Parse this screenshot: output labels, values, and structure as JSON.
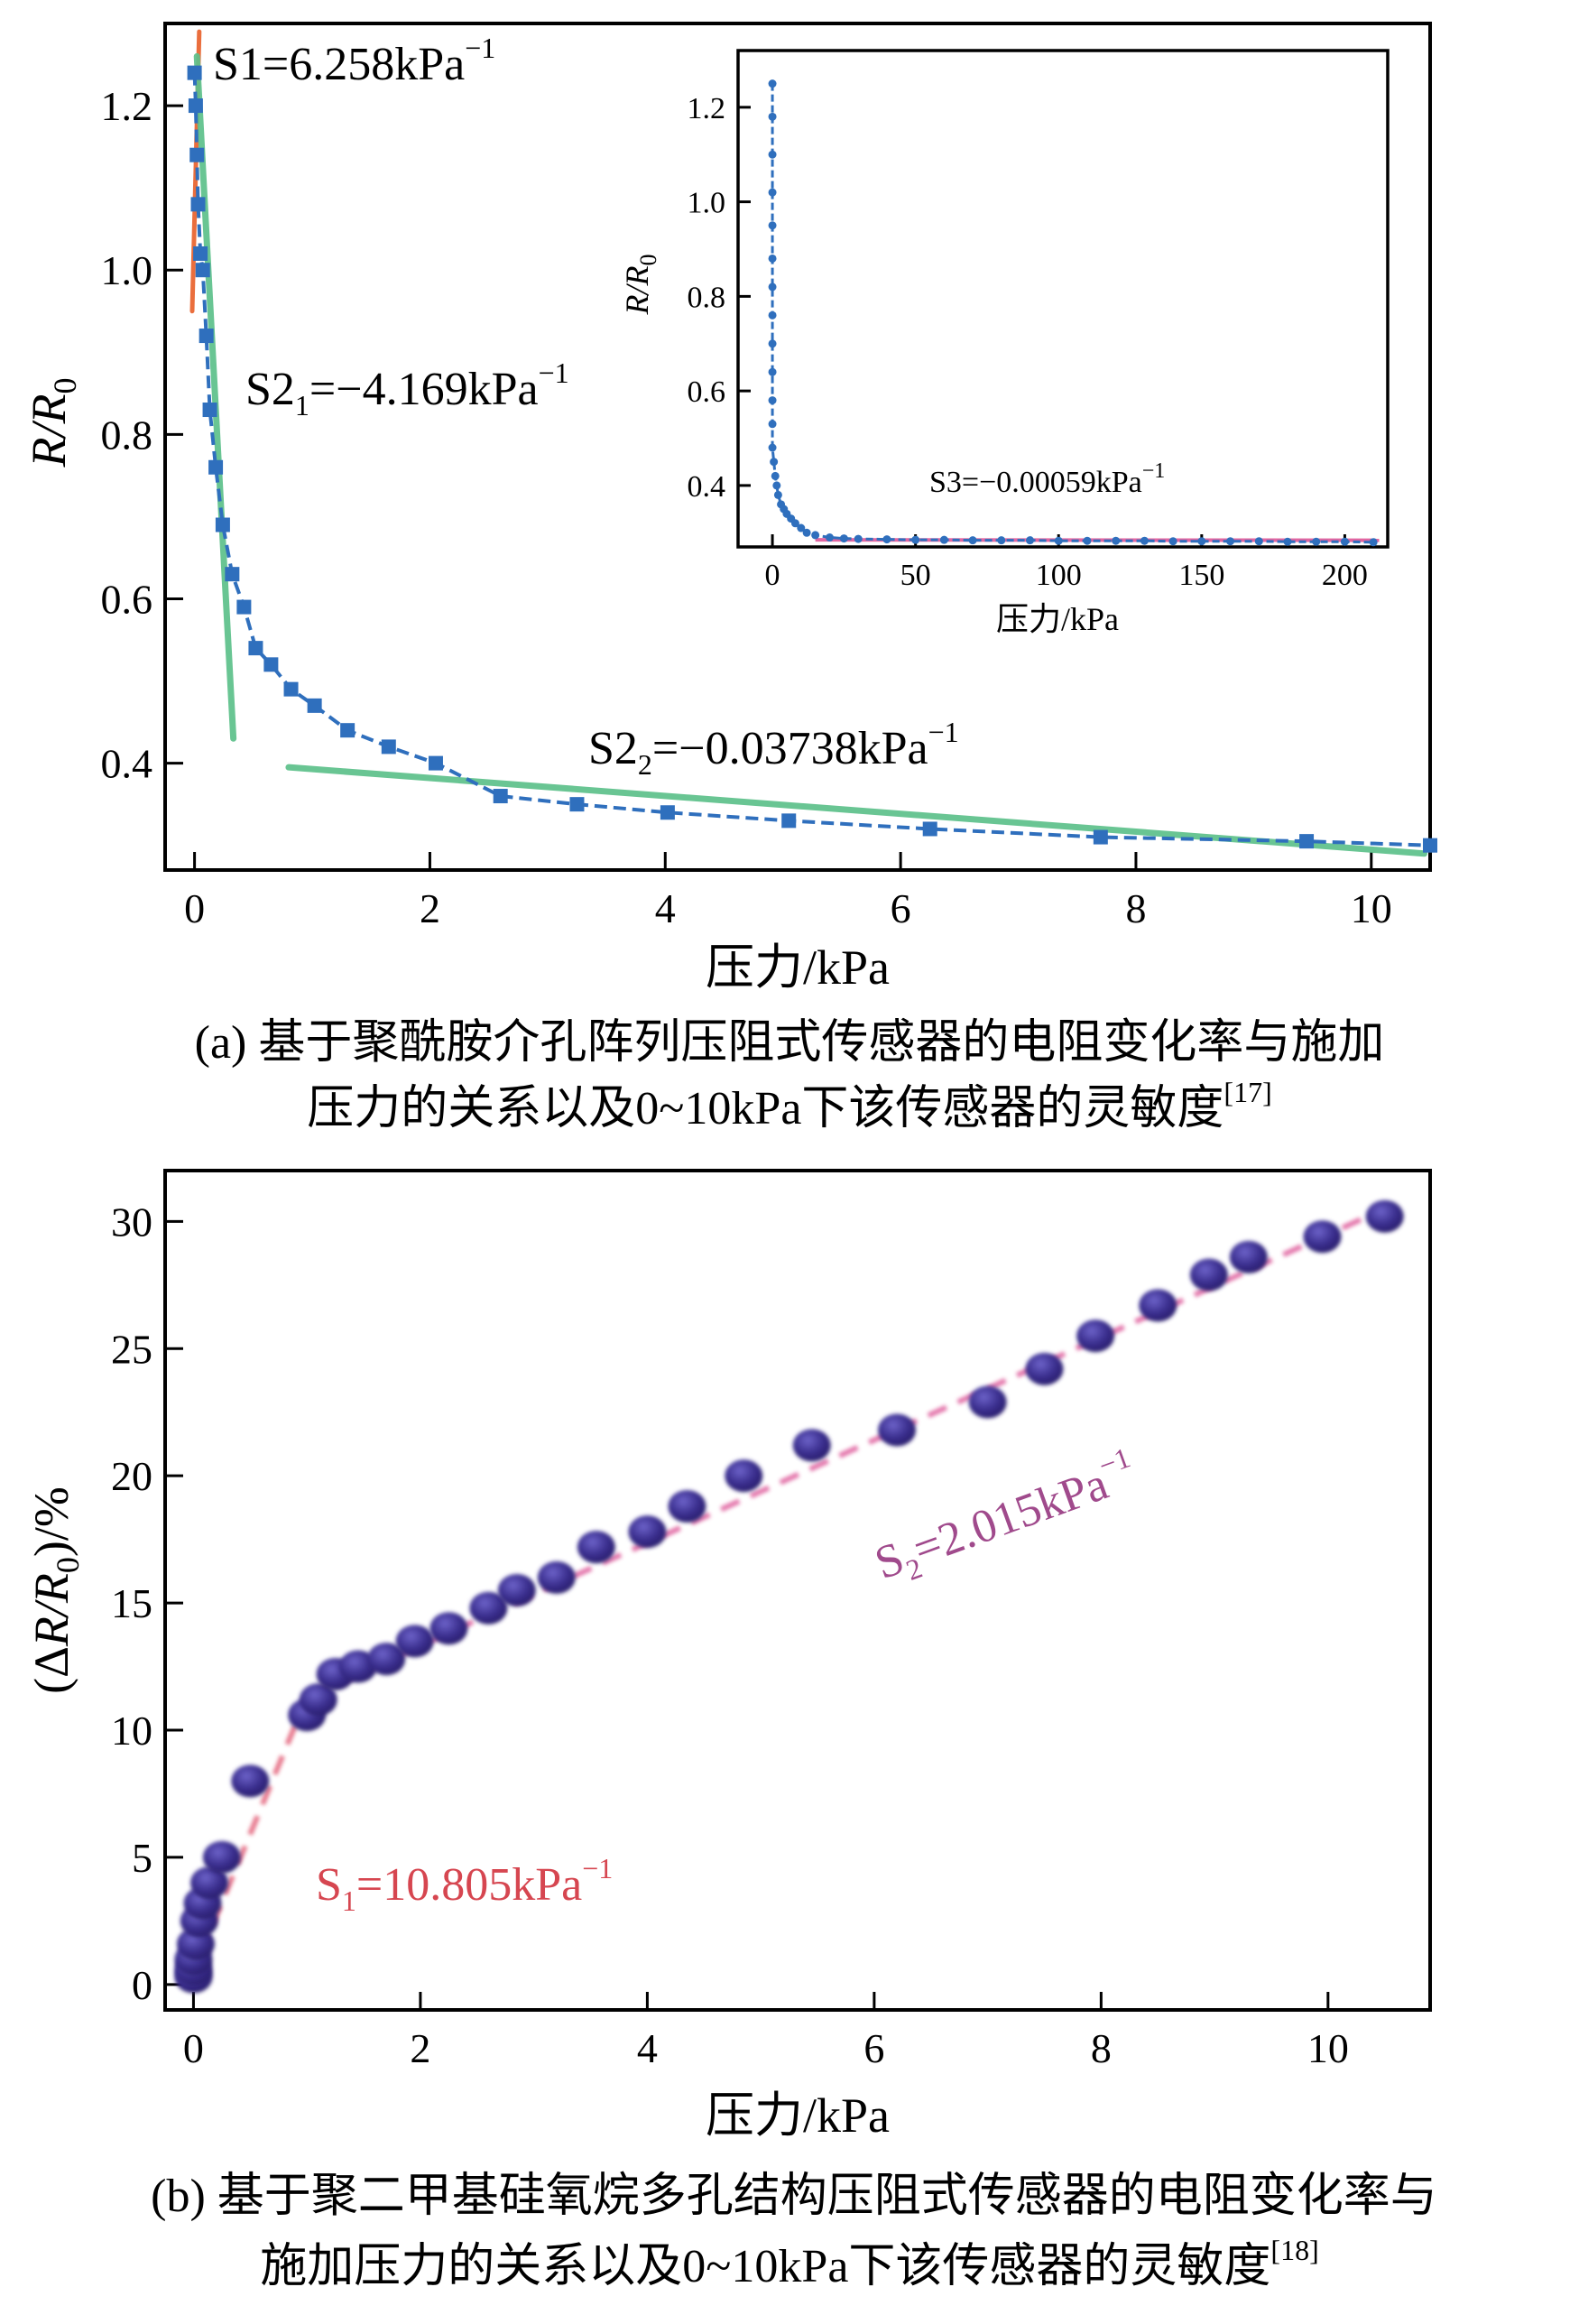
{
  "panel_a": {
    "caption_lines": [
      "(a) 基于聚酰胺介孔阵列压阻式传感器的电阻变化率与施加",
      "压力的关系以及0~10kPa下该传感器的灵敏度"
    ],
    "caption_ref": "[17]",
    "xlabel": "压力/kPa",
    "ylabel_main": "R/R",
    "ylabel_sub": "0",
    "annotations": {
      "s1_text": "S1=6.258kPa",
      "s1_sup": "−1",
      "s21_main": "S2",
      "s21_sub": "1",
      "s21_rest": "=−4.169kPa",
      "s21_sup": "−1",
      "s22_main": "S2",
      "s22_sub": "2",
      "s22_rest": "=−0.03738kPa",
      "s22_sup": "−1"
    },
    "inset": {
      "xlabel": "压力/kPa",
      "ylabel_main": "R/R",
      "ylabel_sub": "0",
      "s3_text": "S3=−0.00059kPa",
      "s3_sup": "−1"
    }
  },
  "panel_b": {
    "caption_lines": [
      "(b) 基于聚二甲基硅氧烷多孔结构压阻式传感器的电阻变化率与",
      "施加压力的关系以及0~10kPa下该传感器的灵敏度"
    ],
    "caption_ref": "[18]",
    "xlabel": "压力/kPa",
    "ylabel_pre": "(Δ",
    "ylabel_r": "R/R",
    "ylabel_sub": "0",
    "ylabel_post": ")/%",
    "annotations": {
      "s1_main": "S",
      "s1_sub": "1",
      "s1_rest": "=10.805kPa",
      "s1_sup": "−1",
      "s2_main": "S",
      "s2_sub": "2",
      "s2_rest": "=2.015kPa",
      "s2_sup": "−1"
    }
  },
  "colors": {
    "blue_series": "#2f6fbd",
    "green_fit": "#5cc08a",
    "orange_fit": "#e8622c",
    "pink_fit": "#d9408a",
    "ball": "#3b2f8f",
    "red_dash": "#e0506a",
    "s1_label": "#d64650",
    "s2_label": "#a04a8c"
  },
  "chart_data": [
    {
      "type": "line",
      "title": "",
      "xlabel": "压力/kPa",
      "ylabel": "R/R0",
      "xlim": [
        -0.25,
        10.5
      ],
      "ylim": [
        0.27,
        1.3
      ],
      "xticks": [
        "0",
        "2",
        "4",
        "6",
        "8",
        "10"
      ],
      "yticks": [
        "0.4",
        "0.6",
        "0.8",
        "1.0",
        "1.2"
      ],
      "xtick_values": [
        0,
        2,
        4,
        6,
        8,
        10
      ],
      "ytick_values": [
        0.4,
        0.6,
        0.8,
        1.0,
        1.2
      ],
      "series": [
        {
          "name": "R/R0",
          "x": [
            0.0,
            0.01,
            0.02,
            0.03,
            0.05,
            0.07,
            0.1,
            0.13,
            0.18,
            0.24,
            0.32,
            0.42,
            0.52,
            0.65,
            0.82,
            1.02,
            1.3,
            1.65,
            2.05,
            2.6,
            3.25,
            4.02,
            5.05,
            6.25,
            7.7,
            9.45,
            10.5
          ],
          "y": [
            1.24,
            1.2,
            1.14,
            1.08,
            1.02,
            1.0,
            0.92,
            0.83,
            0.76,
            0.69,
            0.63,
            0.59,
            0.54,
            0.52,
            0.49,
            0.47,
            0.44,
            0.42,
            0.4,
            0.36,
            0.35,
            0.34,
            0.33,
            0.32,
            0.31,
            0.305,
            0.3
          ]
        },
        {
          "name": "S1 fit",
          "x": [
            -0.02,
            0.04
          ],
          "y": [
            0.95,
            1.29
          ]
        },
        {
          "name": "S2_1 fit",
          "x": [
            0.02,
            0.33
          ],
          "y": [
            1.26,
            0.43
          ]
        },
        {
          "name": "S2_2 fit",
          "x": [
            0.8,
            10.45
          ],
          "y": [
            0.395,
            0.29
          ]
        }
      ],
      "inset": {
        "type": "line",
        "xlabel": "压力/kPa",
        "ylabel": "R/R0",
        "xlim": [
          -12,
          215
        ],
        "ylim": [
          0.27,
          1.32
        ],
        "xticks": [
          "0",
          "50",
          "100",
          "150",
          "200"
        ],
        "yticks": [
          "0.4",
          "0.6",
          "0.8",
          "1.0",
          "1.2"
        ],
        "xtick_values": [
          0,
          50,
          100,
          150,
          200
        ],
        "ytick_values": [
          0.4,
          0.6,
          0.8,
          1.0,
          1.2
        ],
        "series": [
          {
            "name": "R/R0",
            "x": [
              0,
              0,
              0,
              0,
              0,
              0,
              0,
              0,
              0,
              0,
              0,
              0,
              0,
              0.5,
              1,
              1.5,
              2,
              3,
              4,
              5,
              6.5,
              8,
              10,
              12,
              15,
              20,
              25,
              30,
              40,
              50,
              60,
              70,
              80,
              90,
              100,
              110,
              120,
              130,
              140,
              150,
              160,
              170,
              180,
              190,
              200,
              210
            ],
            "y": [
              1.25,
              1.18,
              1.1,
              1.02,
              0.95,
              0.88,
              0.82,
              0.76,
              0.7,
              0.64,
              0.58,
              0.53,
              0.48,
              0.45,
              0.42,
              0.4,
              0.38,
              0.36,
              0.35,
              0.34,
              0.33,
              0.32,
              0.31,
              0.3,
              0.295,
              0.29,
              0.288,
              0.287,
              0.286,
              0.285,
              0.285,
              0.284,
              0.284,
              0.284,
              0.283,
              0.283,
              0.283,
              0.283,
              0.282,
              0.282,
              0.282,
              0.282,
              0.281,
              0.281,
              0.281,
              0.28
            ]
          },
          {
            "name": "S3 fit",
            "x": [
              15,
              212
            ],
            "y": [
              0.285,
              0.284
            ]
          }
        ]
      }
    },
    {
      "type": "scatter",
      "title": "",
      "xlabel": "压力/kPa",
      "ylabel": "(ΔR/R0)/%",
      "xlim": [
        -0.25,
        10.9
      ],
      "ylim": [
        -1,
        32
      ],
      "xticks": [
        "0",
        "2",
        "4",
        "6",
        "8",
        "10"
      ],
      "yticks": [
        "0",
        "5",
        "10",
        "15",
        "20",
        "25",
        "30"
      ],
      "xtick_values": [
        0,
        2,
        4,
        6,
        8,
        10
      ],
      "ytick_values": [
        0,
        5,
        10,
        15,
        20,
        25,
        30
      ],
      "series": [
        {
          "name": "ΔR/R0",
          "x": [
            0.0,
            0.0,
            0.0,
            0.02,
            0.05,
            0.08,
            0.14,
            0.25,
            0.5,
            1.0,
            1.1,
            1.25,
            1.45,
            1.7,
            1.95,
            2.25,
            2.6,
            2.85,
            3.2,
            3.55,
            4.0,
            4.35,
            4.85,
            5.45,
            6.2,
            7.0,
            7.5,
            7.95,
            8.5,
            8.95,
            9.3,
            9.95,
            10.5
          ],
          "y": [
            0.3,
            0.6,
            1.0,
            1.6,
            2.5,
            3.2,
            4.0,
            5.0,
            8.0,
            10.6,
            11.2,
            12.2,
            12.5,
            12.8,
            13.5,
            14.0,
            14.8,
            15.5,
            16.0,
            17.2,
            17.8,
            18.8,
            20.0,
            21.2,
            21.8,
            22.9,
            24.2,
            25.5,
            26.7,
            27.9,
            28.6,
            29.4,
            30.2
          ]
        },
        {
          "name": "S1 fit",
          "x": [
            -0.05,
            1.0
          ],
          "y": [
            0.0,
            11.3
          ]
        },
        {
          "name": "S2 fit",
          "x": [
            1.0,
            10.5
          ],
          "y": [
            11.3,
            30.5
          ]
        }
      ]
    }
  ]
}
